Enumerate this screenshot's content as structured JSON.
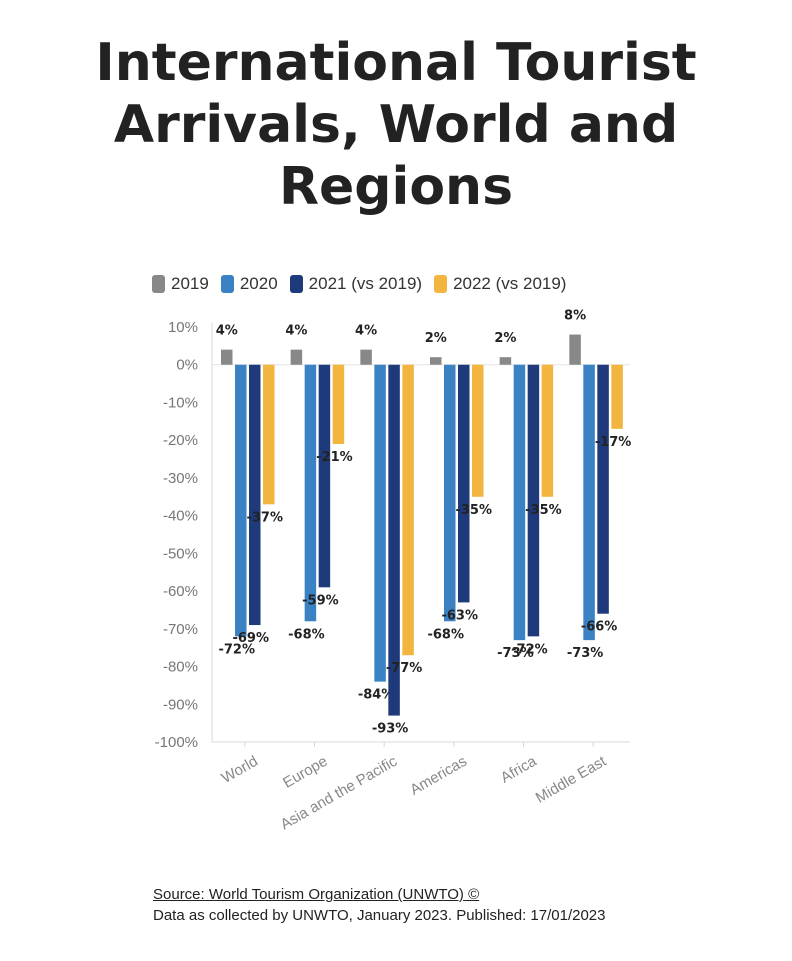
{
  "title_lines": [
    "International Tourist",
    "Arrivals, World and",
    "Regions"
  ],
  "source": {
    "link_text": "Source: World Tourism Organization (UNWTO) ©",
    "note": "Data as collected by UNWTO, January 2023. Published: 17/01/2023"
  },
  "chart_data": {
    "type": "bar",
    "title": "International Tourist Arrivals, World and Regions",
    "categories": [
      "World",
      "Europe",
      "Asia and the Pacific",
      "Americas",
      "Africa",
      "Middle East"
    ],
    "series": [
      {
        "name": "2019",
        "color": "#888888",
        "values": [
          4,
          4,
          4,
          2,
          2,
          8
        ]
      },
      {
        "name": "2020",
        "color": "#3b82c4",
        "values": [
          -72,
          -68,
          -84,
          -68,
          -73,
          -73
        ]
      },
      {
        "name": "2021 (vs 2019)",
        "color": "#1f3a7a",
        "values": [
          -69,
          -59,
          -93,
          -63,
          -72,
          -66
        ]
      },
      {
        "name": "2022 (vs 2019)",
        "color": "#f2b53f",
        "values": [
          -37,
          -21,
          -77,
          -35,
          -35,
          -17
        ]
      }
    ],
    "ylim": [
      -100,
      10
    ],
    "yticks": [
      10,
      0,
      -10,
      -20,
      -30,
      -40,
      -50,
      -60,
      -70,
      -80,
      -90,
      -100
    ],
    "ytick_format": "%",
    "legend_position": "top-left",
    "grid": false,
    "xlabel": "",
    "ylabel": ""
  }
}
